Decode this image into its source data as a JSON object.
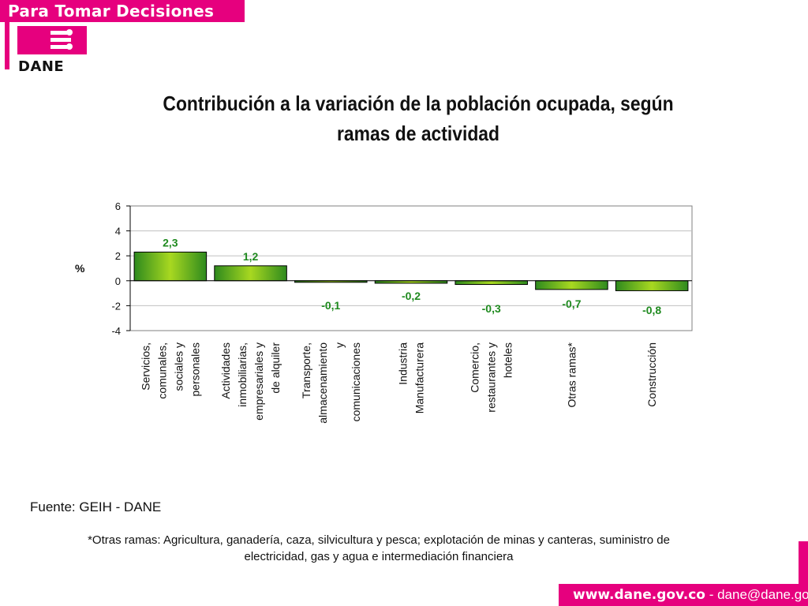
{
  "header": {
    "banner_text": "Para Tomar Decisiones",
    "logo_text": "DANE"
  },
  "title_lines": [
    "Contribución a la variación de la población ocupada, según",
    "ramas de actividad"
  ],
  "chart_data": {
    "type": "bar",
    "title": "Contribución a la variación de la población ocupada, según ramas de actividad",
    "ylabel": "%",
    "xlabel": "",
    "ylim": [
      -4,
      6
    ],
    "yticks": [
      6,
      4,
      2,
      0,
      -2,
      -4
    ],
    "grid": true,
    "legend": "none",
    "categories": [
      [
        "Servicios,",
        "comunales,",
        "sociales y",
        "personales"
      ],
      [
        "Actividades",
        "inmobiliarias,",
        "empresariales y",
        "de alquiler"
      ],
      [
        "Transporte,",
        "almacenamiento",
        "y",
        "comunicaciones"
      ],
      [
        "Industria",
        "Manufacturera"
      ],
      [
        "Comercio,",
        "restaurantes y",
        "hoteles"
      ],
      [
        "Otras ramas*"
      ],
      [
        "Construcción"
      ]
    ],
    "values": [
      2.3,
      1.2,
      -0.1,
      -0.2,
      -0.3,
      -0.7,
      -0.8
    ],
    "data_labels": [
      "2,3",
      "1,2",
      "-0,1",
      "-0,2",
      "-0,3",
      "-0,7",
      "-0,8"
    ],
    "colors": {
      "bar_light": "#a8d820",
      "bar_dark": "#2e8a1e",
      "label": "#1f8a1f",
      "grid": "#c0c0c0",
      "axis": "#000000"
    }
  },
  "footer": {
    "source": "Fuente: GEIH - DANE",
    "note_line1": "*Otras ramas: Agricultura, ganadería, caza, silvicultura y pesca; explotación de minas y canteras, suministro de",
    "note_line2": "electricidad, gas y agua e intermediación financiera",
    "site": "www.dane.gov.co",
    "separator": " - ",
    "email": "dane@dane.gov.co"
  }
}
